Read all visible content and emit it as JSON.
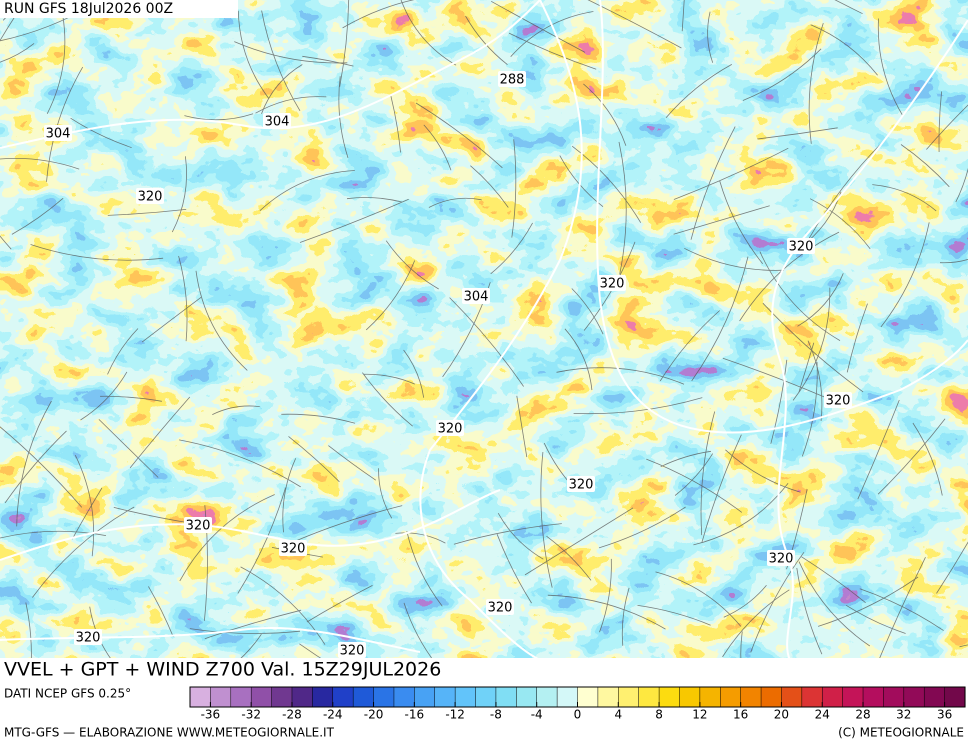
{
  "header": {
    "run": "RUN GFS 18Jul2026 00Z"
  },
  "map": {
    "contour_labels": [
      "288",
      "304",
      "304",
      "320",
      "304",
      "320",
      "320",
      "320",
      "320",
      "320",
      "320",
      "320",
      "320",
      "320",
      "320",
      "320"
    ]
  },
  "title": "VVEL + GPT + WIND Z700 Val. 15Z29JUL2026",
  "source": "DATI NCEP GFS 0.25°",
  "colorbar": {
    "range": [
      -38,
      38
    ],
    "ticks": [
      -36,
      -32,
      -28,
      -24,
      -20,
      -16,
      -12,
      -8,
      -4,
      0,
      4,
      8,
      12,
      16,
      20,
      24,
      28,
      32,
      36
    ],
    "colors": [
      "#d8b0e0",
      "#c090d0",
      "#a870c0",
      "#9050a8",
      "#703890",
      "#502888",
      "#2828a0",
      "#2040c8",
      "#1f5ad8",
      "#2a74e6",
      "#3a8cf0",
      "#48a2f4",
      "#56b4f8",
      "#62c4fa",
      "#70d2f8",
      "#80def4",
      "#98e8f2",
      "#b4f0f2",
      "#d4f8f8",
      "#ffffd0",
      "#fff8a0",
      "#fff070",
      "#fee840",
      "#fcdc10",
      "#f8c800",
      "#f5b400",
      "#f59c00",
      "#f28400",
      "#ec6c00",
      "#e45018",
      "#dc3434",
      "#d02048",
      "#c41458",
      "#b40e5e",
      "#a20c5c",
      "#920a58",
      "#820852",
      "#72084a"
    ]
  },
  "footer": {
    "left": "MTG-GFS — ELABORAZIONE WWW.METEOGIORNALE.IT",
    "right": "(C) METEOGIORNALE"
  }
}
